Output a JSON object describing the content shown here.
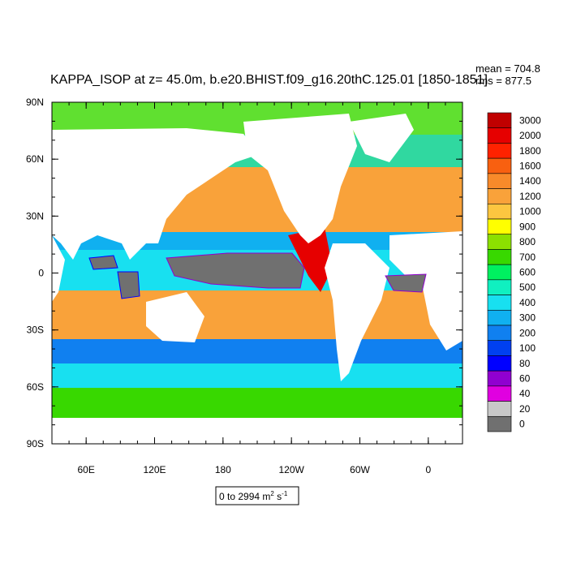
{
  "title": "KAPPA_ISOP at z=  45.0m, b.e20.BHIST.f09_g16.20thC.125.01 [1850-1851]",
  "stats": {
    "mean": "mean = 704.8",
    "rms": "rms = 877.5"
  },
  "lat_labels": [
    "90N",
    "60N",
    "30N",
    "0",
    "30S",
    "60S",
    "90S"
  ],
  "lon_labels": [
    "60E",
    "120E",
    "180",
    "120W",
    "60W",
    "0"
  ],
  "colorbar": {
    "labels": [
      "3000",
      "2000",
      "1800",
      "1600",
      "1400",
      "1200",
      "1000",
      "900",
      "800",
      "700",
      "600",
      "500",
      "400",
      "300",
      "200",
      "100",
      "80",
      "60",
      "40",
      "20",
      "0"
    ],
    "colors": [
      "#c00000",
      "#e60000",
      "#ff2200",
      "#f86010",
      "#f88a2a",
      "#f9a23a",
      "#fcc640",
      "#ffff00",
      "#8ce000",
      "#38d800",
      "#00f060",
      "#10f0c0",
      "#18e0f0",
      "#10b0f0",
      "#1080f0",
      "#0040f0",
      "#0000ff",
      "#9000d0",
      "#e000e0",
      "#c8c8c8",
      "#707070"
    ]
  },
  "range_box": {
    "text": "0 to 2994 m",
    "exp1": "2",
    "mid": " s",
    "exp2": "-1"
  }
}
